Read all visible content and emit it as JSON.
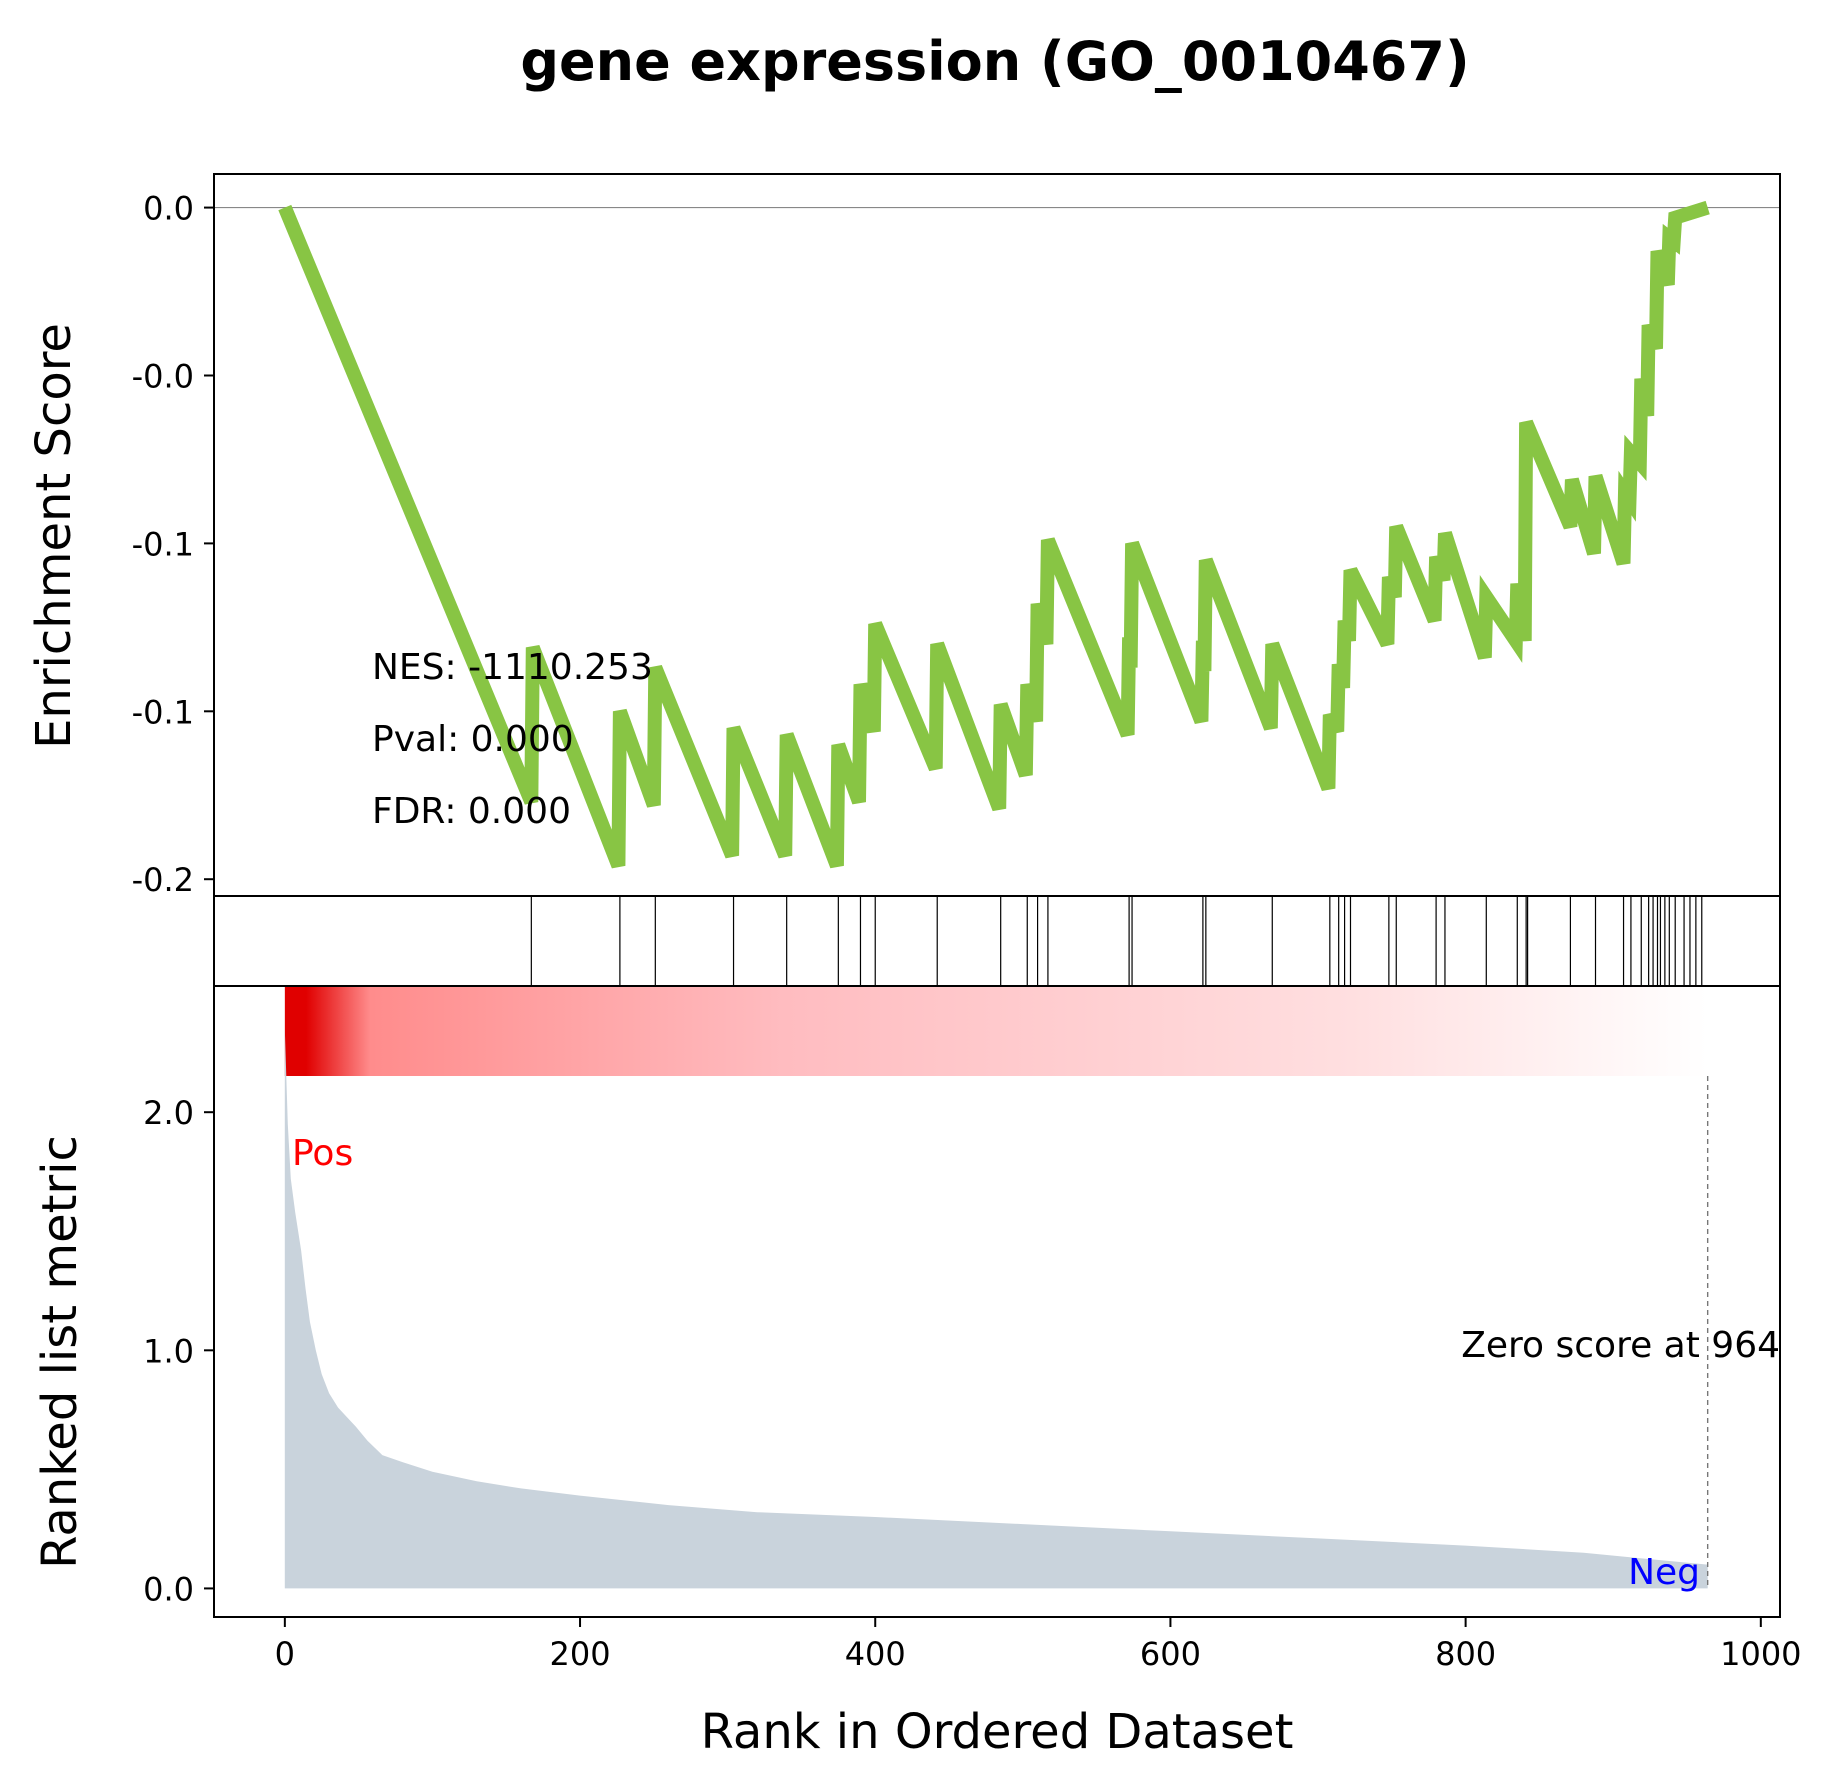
{
  "title": "gene expression (GO_0010467)",
  "colors": {
    "es_line": "#88c544",
    "metric_fill": "#c9d3dc",
    "pos_label": "#ff0000",
    "neg_label": "#0000ff",
    "heat_start": "#e00000",
    "heat_end": "#ffffff"
  },
  "stats": {
    "nes": "NES: -1110.253",
    "pval": "Pval: 0.000",
    "fdr": "FDR: 0.000"
  },
  "labels": {
    "pos": "Pos",
    "neg": "Neg",
    "zero_score": "Zero score at 964"
  },
  "chart_data": {
    "type": "line",
    "title": "gene expression (GO_0010467)",
    "xlabel": "Rank in Ordered Dataset",
    "zero_score_rank": 964,
    "xlim": [
      -48,
      1013
    ],
    "x_ticks": [
      0,
      200,
      400,
      600,
      800,
      1000
    ],
    "x_tick_labels": [
      "0",
      "200",
      "400",
      "600",
      "800",
      "1000"
    ],
    "enrichment": {
      "ylabel": "Enrichment Score",
      "ylim": [
        -0.205,
        0.01
      ],
      "y_ticks": [
        0.0,
        -0.05,
        -0.1,
        -0.15,
        -0.2
      ],
      "y_tick_labels": [
        "0.0",
        "-0.0",
        "-0.1",
        "-0.1",
        "-0.2"
      ],
      "points": [
        [
          0,
          0.0
        ],
        [
          167,
          -0.177
        ],
        [
          168,
          -0.131
        ],
        [
          226,
          -0.196
        ],
        [
          227,
          -0.15
        ],
        [
          250,
          -0.178
        ],
        [
          251,
          -0.137
        ],
        [
          303,
          -0.193
        ],
        [
          304,
          -0.155
        ],
        [
          339,
          -0.193
        ],
        [
          340,
          -0.157
        ],
        [
          374,
          -0.196
        ],
        [
          375,
          -0.16
        ],
        [
          389,
          -0.177
        ],
        [
          390,
          -0.142
        ],
        [
          399,
          -0.156
        ],
        [
          400,
          -0.124
        ],
        [
          441,
          -0.167
        ],
        [
          442,
          -0.13
        ],
        [
          484,
          -0.179
        ],
        [
          485,
          -0.148
        ],
        [
          502,
          -0.169
        ],
        [
          503,
          -0.142
        ],
        [
          509,
          -0.153
        ],
        [
          510,
          -0.118
        ],
        [
          516,
          -0.13
        ],
        [
          517,
          -0.099
        ],
        [
          571,
          -0.157
        ],
        [
          572,
          -0.128
        ],
        [
          573,
          -0.137
        ],
        [
          574,
          -0.1
        ],
        [
          621,
          -0.153
        ],
        [
          622,
          -0.129
        ],
        [
          623,
          -0.138
        ],
        [
          624,
          -0.105
        ],
        [
          668,
          -0.155
        ],
        [
          669,
          -0.13
        ],
        [
          707,
          -0.173
        ],
        [
          708,
          -0.151
        ],
        [
          713,
          -0.156
        ],
        [
          714,
          -0.136
        ],
        [
          717,
          -0.143
        ],
        [
          718,
          -0.123
        ],
        [
          721,
          -0.129
        ],
        [
          722,
          -0.108
        ],
        [
          747,
          -0.13
        ],
        [
          748,
          -0.11
        ],
        [
          752,
          -0.116
        ],
        [
          753,
          -0.095
        ],
        [
          779,
          -0.123
        ],
        [
          780,
          -0.104
        ],
        [
          785,
          -0.111
        ],
        [
          786,
          -0.097
        ],
        [
          813,
          -0.134
        ],
        [
          814,
          -0.116
        ],
        [
          834,
          -0.129
        ],
        [
          835,
          -0.112
        ],
        [
          840,
          -0.129
        ],
        [
          841,
          -0.064
        ],
        [
          871,
          -0.095
        ],
        [
          872,
          -0.081
        ],
        [
          887,
          -0.103
        ],
        [
          888,
          -0.08
        ],
        [
          907,
          -0.106
        ],
        [
          908,
          -0.085
        ],
        [
          911,
          -0.087
        ],
        [
          912,
          -0.073
        ],
        [
          918,
          -0.076
        ],
        [
          919,
          -0.051
        ],
        [
          923,
          -0.062
        ],
        [
          924,
          -0.035
        ],
        [
          929,
          -0.042
        ],
        [
          930,
          -0.013
        ],
        [
          937,
          -0.023
        ],
        [
          938,
          -0.009
        ],
        [
          941,
          -0.01
        ],
        [
          942,
          -0.003
        ],
        [
          964,
          0.0
        ]
      ]
    },
    "hits": [
      167,
      227,
      251,
      304,
      340,
      375,
      390,
      400,
      442,
      485,
      503,
      510,
      517,
      572,
      574,
      622,
      624,
      669,
      708,
      714,
      718,
      722,
      748,
      753,
      780,
      786,
      814,
      835,
      841,
      842,
      871,
      888,
      907,
      912,
      919,
      924,
      927,
      930,
      932,
      935,
      938,
      942,
      948,
      952,
      956,
      960
    ],
    "metric": {
      "ylabel": "Ranked list metric",
      "ylim": [
        -0.12,
        2.53
      ],
      "y_ticks": [
        0.0,
        1.0,
        2.0
      ],
      "y_tick_labels": [
        "0.0",
        "1.0",
        "2.0"
      ],
      "points": [
        [
          0,
          2.35
        ],
        [
          2,
          1.95
        ],
        [
          4,
          1.72
        ],
        [
          7,
          1.58
        ],
        [
          11,
          1.42
        ],
        [
          14,
          1.26
        ],
        [
          17,
          1.12
        ],
        [
          21,
          1.0
        ],
        [
          25,
          0.9
        ],
        [
          30,
          0.82
        ],
        [
          36,
          0.76
        ],
        [
          42,
          0.72
        ],
        [
          48,
          0.68
        ],
        [
          56,
          0.62
        ],
        [
          66,
          0.56
        ],
        [
          80,
          0.53
        ],
        [
          100,
          0.49
        ],
        [
          130,
          0.45
        ],
        [
          160,
          0.42
        ],
        [
          200,
          0.39
        ],
        [
          260,
          0.35
        ],
        [
          320,
          0.32
        ],
        [
          400,
          0.3
        ],
        [
          500,
          0.27
        ],
        [
          600,
          0.24
        ],
        [
          700,
          0.21
        ],
        [
          800,
          0.18
        ],
        [
          880,
          0.15
        ],
        [
          930,
          0.12
        ],
        [
          964,
          0.1
        ]
      ]
    }
  }
}
